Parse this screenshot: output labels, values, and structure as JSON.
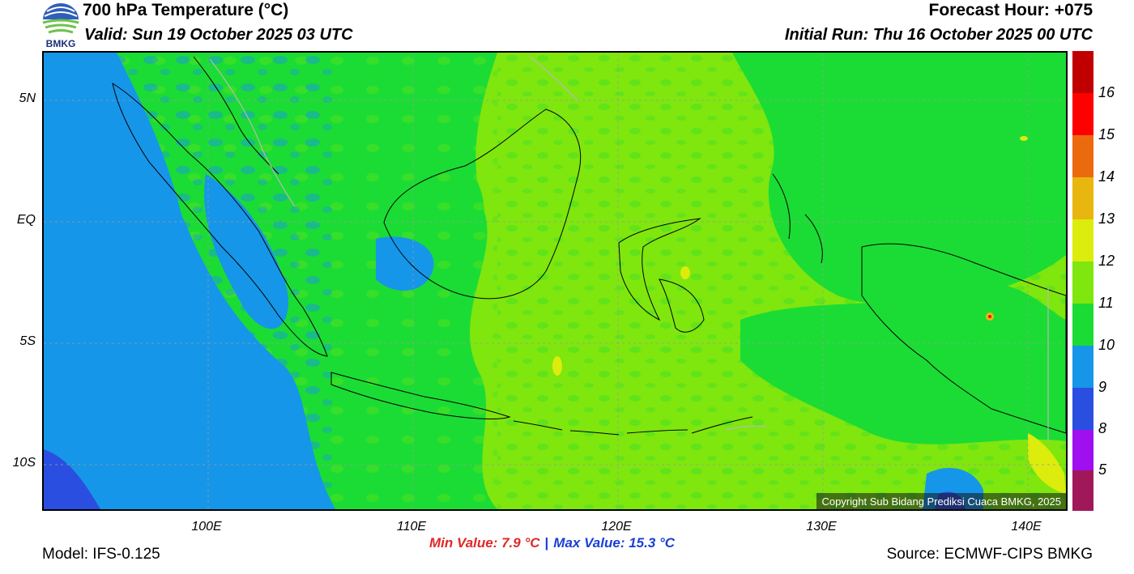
{
  "header": {
    "title": "700 hPa Temperature (°C)",
    "valid": "Valid: Sun 19 October 2025 03 UTC",
    "forecast_hour": "Forecast Hour: +075",
    "initial_run": "Initial Run: Thu 16 October 2025 00 UTC"
  },
  "logo": {
    "text": "BMKG",
    "icon": "bmkg-logo-icon"
  },
  "map": {
    "lat_labels": [
      "5N",
      "EQ",
      "5S",
      "10S"
    ],
    "lon_labels": [
      "100E",
      "110E",
      "120E",
      "130E",
      "140E"
    ],
    "extent": {
      "lon_min": 92,
      "lon_max": 142,
      "lat_min": -12,
      "lat_max": 7
    },
    "copyright": "Copyright Sub Bidang Prediksi Cuaca BMKG, 2025"
  },
  "colorbar": {
    "labels": [
      "16",
      "15",
      "14",
      "13",
      "12",
      "11",
      "10",
      "9",
      "8",
      "5"
    ],
    "colors": [
      "#c00000",
      "#ff0000",
      "#ec6a0e",
      "#e8b60e",
      "#dcec0c",
      "#7fe60e",
      "#1bdc34",
      "#1696e8",
      "#2a4fe0",
      "#a00ff0",
      "#a0185a"
    ]
  },
  "stats": {
    "min": "Min Value: 7.9 °C",
    "separator": "|",
    "max": "Max Value: 15.3 °C"
  },
  "footer": {
    "model": "Model: IFS-0.125",
    "source": "Source: ECMWF-CIPS BMKG"
  }
}
